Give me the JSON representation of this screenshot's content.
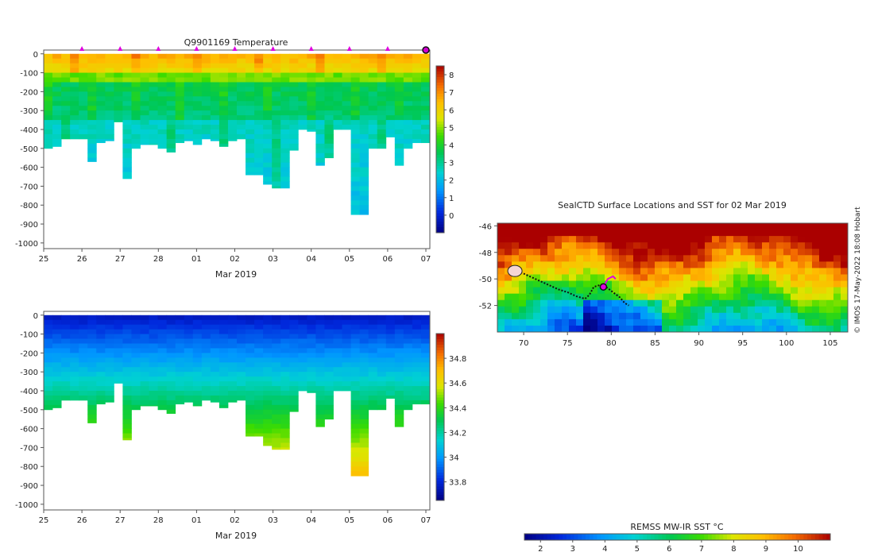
{
  "chart_data": [
    {
      "id": "temperature",
      "type": "heatmap",
      "title": "Q9901169  Temperature",
      "xlabel": "Mar 2019",
      "x_ticks": [
        "25",
        "26",
        "27",
        "28",
        "01",
        "02",
        "03",
        "04",
        "05",
        "06",
        "07"
      ],
      "x_range_days": [
        0,
        10
      ],
      "y_ticks": [
        0,
        -100,
        -200,
        -300,
        -400,
        -500,
        -600,
        -700,
        -800,
        -900,
        -1000
      ],
      "ylim": [
        -1030,
        20
      ],
      "colorbar": {
        "min": -1,
        "max": 8.5,
        "ticks": [
          0,
          1,
          2,
          3,
          4,
          5,
          6,
          7,
          8
        ]
      },
      "surface_markers_days": [
        1,
        2,
        3,
        4,
        5,
        6,
        7,
        8,
        9
      ],
      "last_position_day": 10,
      "profile_max_depths": [
        500,
        490,
        450,
        450,
        450,
        570,
        470,
        460,
        360,
        660,
        500,
        480,
        480,
        500,
        520,
        470,
        460,
        480,
        450,
        460,
        490,
        460,
        450,
        640,
        640,
        690,
        710,
        710,
        510,
        400,
        410,
        590,
        550,
        400,
        400,
        850,
        850,
        500,
        500,
        440,
        590,
        500,
        470,
        470
      ]
    },
    {
      "id": "salinity",
      "type": "heatmap",
      "title": "",
      "xlabel": "Mar 2019",
      "x_ticks": [
        "25",
        "26",
        "27",
        "28",
        "01",
        "02",
        "03",
        "04",
        "05",
        "06",
        "07"
      ],
      "x_range_days": [
        0,
        10
      ],
      "y_ticks": [
        0,
        -100,
        -200,
        -300,
        -400,
        -500,
        -600,
        -700,
        -800,
        -900,
        -1000
      ],
      "ylim": [
        -1030,
        20
      ],
      "colorbar": {
        "min": 33.65,
        "max": 35.0,
        "ticks": [
          33.8,
          34,
          34.2,
          34.4,
          34.6,
          34.8
        ]
      },
      "profile_max_depths": [
        500,
        490,
        450,
        450,
        450,
        570,
        470,
        460,
        360,
        660,
        500,
        480,
        480,
        500,
        520,
        470,
        460,
        480,
        450,
        460,
        490,
        460,
        450,
        640,
        640,
        690,
        710,
        710,
        510,
        400,
        410,
        590,
        550,
        400,
        400,
        850,
        850,
        500,
        500,
        440,
        590,
        500,
        470,
        470
      ]
    },
    {
      "id": "sst-map",
      "type": "heatmap",
      "title": "SealCTD Surface Locations and SST for 02 Mar 2019",
      "x_ticks": [
        70,
        75,
        80,
        85,
        90,
        95,
        100,
        105
      ],
      "xlim": [
        67,
        107
      ],
      "y_ticks": [
        -46,
        -48,
        -50,
        -52
      ],
      "ylim": [
        -54,
        -45.8
      ],
      "colorbar": {
        "label": "REMSS MW-IR SST °C",
        "min": 1.5,
        "max": 11,
        "ticks": [
          2,
          3,
          4,
          5,
          6,
          7,
          8,
          9,
          10
        ]
      },
      "track_lon": [
        69,
        70,
        71,
        72,
        73,
        74,
        75,
        76,
        77,
        77.5,
        78,
        79,
        80,
        81,
        81.5,
        82
      ],
      "track_lat": [
        -49.3,
        -49.6,
        -49.9,
        -50.2,
        -50.5,
        -50.8,
        -51.0,
        -51.3,
        -51.5,
        -51.2,
        -50.6,
        -50.4,
        -50.9,
        -51.4,
        -51.8,
        -52.0
      ],
      "cluster_lon": 69.0,
      "cluster_lat": -49.4,
      "current_lon": 79.1,
      "current_lat": -50.6,
      "recent_lon": [
        79.1,
        79.6,
        80.2,
        80.5
      ],
      "recent_lat": [
        -50.6,
        -50.0,
        -49.8,
        -50.0
      ]
    }
  ],
  "credit": "© IMOS 17-May-2022 18:08 Hobart"
}
